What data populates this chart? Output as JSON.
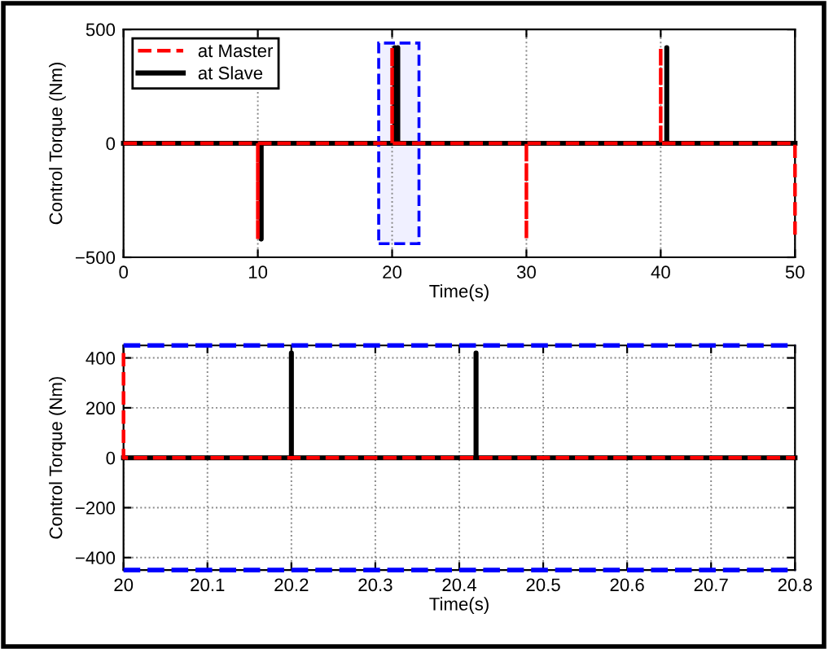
{
  "chart_data": [
    {
      "type": "line",
      "xlabel": "Time(s)",
      "ylabel": "Control Torque (Nm)",
      "xlim": [
        0,
        50
      ],
      "ylim": [
        -500,
        500
      ],
      "xticks": [
        0,
        10,
        20,
        30,
        40,
        50
      ],
      "yticks": [
        -500,
        0,
        500
      ],
      "grid": "x",
      "legend": "top left",
      "series": [
        {
          "name": "at Master",
          "color": "#ff0000",
          "line_style": "dashed",
          "x": [
            0,
            10,
            10,
            10,
            20,
            20,
            20,
            30,
            30,
            30,
            40,
            40,
            40,
            50,
            50
          ],
          "values": [
            0,
            0,
            -420,
            0,
            0,
            420,
            0,
            0,
            -420,
            0,
            0,
            420,
            0,
            0,
            -420
          ]
        },
        {
          "name": "at Slave",
          "color": "#000000",
          "line_style": "solid",
          "x": [
            0,
            10.25,
            10.25,
            10.25,
            20.2,
            20.2,
            20.2,
            20.42,
            20.42,
            20.42,
            40.45,
            40.45,
            40.45,
            50
          ],
          "values": [
            0,
            0,
            -420,
            0,
            0,
            420,
            0,
            0,
            420,
            0,
            0,
            420,
            0,
            0
          ]
        }
      ],
      "bands": [
        {
          "axis": "x",
          "from": 19,
          "to": 22,
          "color": "#0000ff"
        }
      ]
    },
    {
      "type": "line",
      "xlabel": "Time(s)",
      "ylabel": "Control Torque (Nm)",
      "xlim": [
        20,
        20.8
      ],
      "ylim": [
        -450,
        450
      ],
      "xticks": [
        20,
        20.1,
        20.2,
        20.3,
        20.4,
        20.5,
        20.6,
        20.7,
        20.8
      ],
      "yticks": [
        -400,
        -200,
        0,
        200,
        400
      ],
      "grid": true,
      "legend": false,
      "series": [
        {
          "color": "#ff0000",
          "line_style": "dashed",
          "x": [
            20,
            20,
            20.8
          ],
          "values": [
            420,
            0,
            0
          ]
        },
        {
          "color": "#000000",
          "line_style": "solid",
          "x": [
            20,
            20.2,
            20.2,
            20.2,
            20.42,
            20.42,
            20.42,
            20.8
          ],
          "values": [
            0,
            0,
            420,
            0,
            0,
            420,
            0,
            0
          ]
        }
      ],
      "ref_lines": [
        {
          "axis": "y",
          "value": 450,
          "color": "#0000ff",
          "line_style": "dashed"
        },
        {
          "axis": "y",
          "value": -450,
          "color": "#0000ff",
          "line_style": "dashed"
        }
      ]
    }
  ]
}
